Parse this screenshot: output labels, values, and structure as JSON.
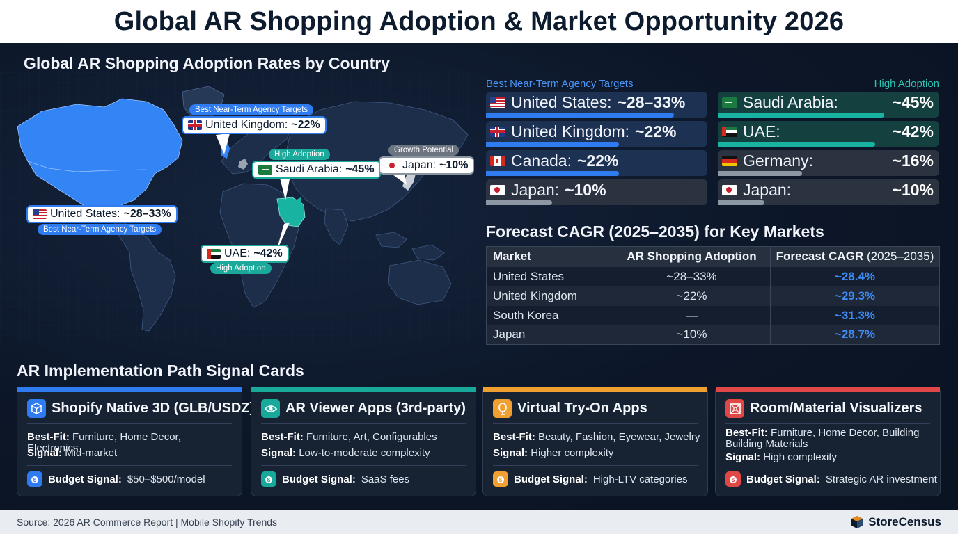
{
  "title": "Global AR Shopping Adoption & Market Opportunity 2026",
  "map": {
    "heading": "Global AR Shopping Adoption Rates by Country",
    "callouts": {
      "uk": {
        "country": "United Kingdom:",
        "value": "~22%",
        "tag": "Best Near-Term Agency Targets"
      },
      "us": {
        "country": "United States:",
        "value": "~28–33%",
        "tag": "Best Near-Term Agency Targets"
      },
      "sa": {
        "country": "Saudi Arabia:",
        "value": "~45%",
        "tag": "High Adoption"
      },
      "ae": {
        "country": "UAE:",
        "value": "~42%",
        "tag": "High Adoption"
      },
      "jp": {
        "country": "Japan:",
        "value": "~10%",
        "tag": "Growth Potential"
      }
    }
  },
  "bars": {
    "left_heading": "Best Near-Term Agency Targets",
    "right_heading": "High Adoption",
    "left": [
      {
        "country": "United States:",
        "value": "~28–33%",
        "flag": "us",
        "level": 0.85
      },
      {
        "country": "United Kingdom:",
        "value": "~22%",
        "flag": "uk",
        "level": 0.6
      },
      {
        "country": "Canada:",
        "value": "~22%",
        "flag": "ca",
        "level": 0.6
      },
      {
        "country": "Japan:",
        "value": "~10%",
        "flag": "jp",
        "level": 0.3
      }
    ],
    "right": [
      {
        "country": "Saudi Arabia:",
        "value": "~45%",
        "flag": "sa",
        "level": 0.75
      },
      {
        "country": "UAE:",
        "value": "~42%",
        "flag": "ae",
        "level": 0.71
      },
      {
        "country": "Germany:",
        "value": "~16%",
        "flag": "de",
        "level": 0.38
      },
      {
        "country": "Japan:",
        "value": "~10%",
        "flag": "jp",
        "level": 0.21
      }
    ]
  },
  "forecast": {
    "heading": "Forecast CAGR (2025–2035) for Key Markets",
    "columns": [
      "Market",
      "AR Shopping Adoption",
      "Forecast CAGR",
      "(2025–2035)"
    ],
    "rows": [
      {
        "market": "United States",
        "adoption": "~28–33%",
        "cagr": "~28.4%"
      },
      {
        "market": "United Kingdom",
        "adoption": "~22%",
        "cagr": "~29.3%"
      },
      {
        "market": "South Korea",
        "adoption": "—",
        "cagr": "~31.3%"
      },
      {
        "market": "Japan",
        "adoption": "~10%",
        "cagr": "~28.7%"
      }
    ]
  },
  "cards_heading": "AR Implementation Path Signal Cards",
  "cards": [
    {
      "title": "Shopify Native 3D (GLB/USDZ)",
      "bestfit_label": "Best-Fit:",
      "bestfit": "Furniture, Home Decor, Electronics",
      "signal_label": "Signal:",
      "signal": "Mid-market",
      "budget_label": "Budget Signal:",
      "budget": "$50–$500/model",
      "icon": "cube-icon",
      "color": "#2f7bf0"
    },
    {
      "title": "AR Viewer Apps (3rd-party)",
      "bestfit_label": "Best-Fit:",
      "bestfit": "Furniture, Art, Configurables",
      "signal_label": "Signal:",
      "signal": "Low-to-moderate complexity",
      "budget_label": "Budget Signal:",
      "budget": "SaaS fees",
      "icon": "eye-icon",
      "color": "#19a99a"
    },
    {
      "title": "Virtual Try-On Apps",
      "bestfit_label": "Best-Fit:",
      "bestfit": "Beauty, Fashion, Eyewear, Jewelry",
      "signal_label": "Signal:",
      "signal": "Higher complexity",
      "budget_label": "Budget Signal:",
      "budget": "High-LTV categories",
      "icon": "mirror-icon",
      "color": "#f0a030"
    },
    {
      "title": "Room/Material Visualizers",
      "bestfit_label": "Best-Fit:",
      "bestfit": "Furniture, Home Decor, Building",
      "bestfit_cont": "Building Materials",
      "signal_label": "Signal:",
      "signal": "High complexity",
      "budget_label": "Budget Signal:",
      "budget": "Strategic AR investment",
      "icon": "room-icon",
      "color": "#e04848"
    }
  ],
  "footer": {
    "source": "Source: 2026 AR Commerce Report | Mobile Shopify Trends",
    "brand": "StoreCensus"
  }
}
